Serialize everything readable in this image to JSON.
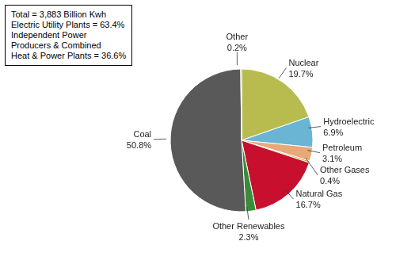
{
  "chart_data": {
    "type": "pie",
    "categories": [
      "Nuclear",
      "Hydroelectric",
      "Petroleum",
      "Other Gases",
      "Natural Gas",
      "Other Renewables",
      "Coal",
      "Other"
    ],
    "values": [
      19.7,
      6.9,
      3.1,
      0.4,
      16.7,
      2.3,
      50.8,
      0.2
    ],
    "value_labels": [
      "19.7%",
      "6.9%",
      "3.1%",
      "0.4%",
      "16.7%",
      "2.3%",
      "50.8%",
      "0.2%"
    ],
    "colors": [
      "#b8bc4e",
      "#6ab4d4",
      "#e8a878",
      "#c8a428",
      "#c8102e",
      "#3a8c3a",
      "#595959",
      "#8b9c3a"
    ],
    "data_labels": true,
    "annotations": [
      "Total = 3,883 Billion Kwh\nElectric Utility Plants = 63.4%\nIndependent Power\nProducers & Combined\nHeat & Power Plants = 36.6%"
    ]
  }
}
